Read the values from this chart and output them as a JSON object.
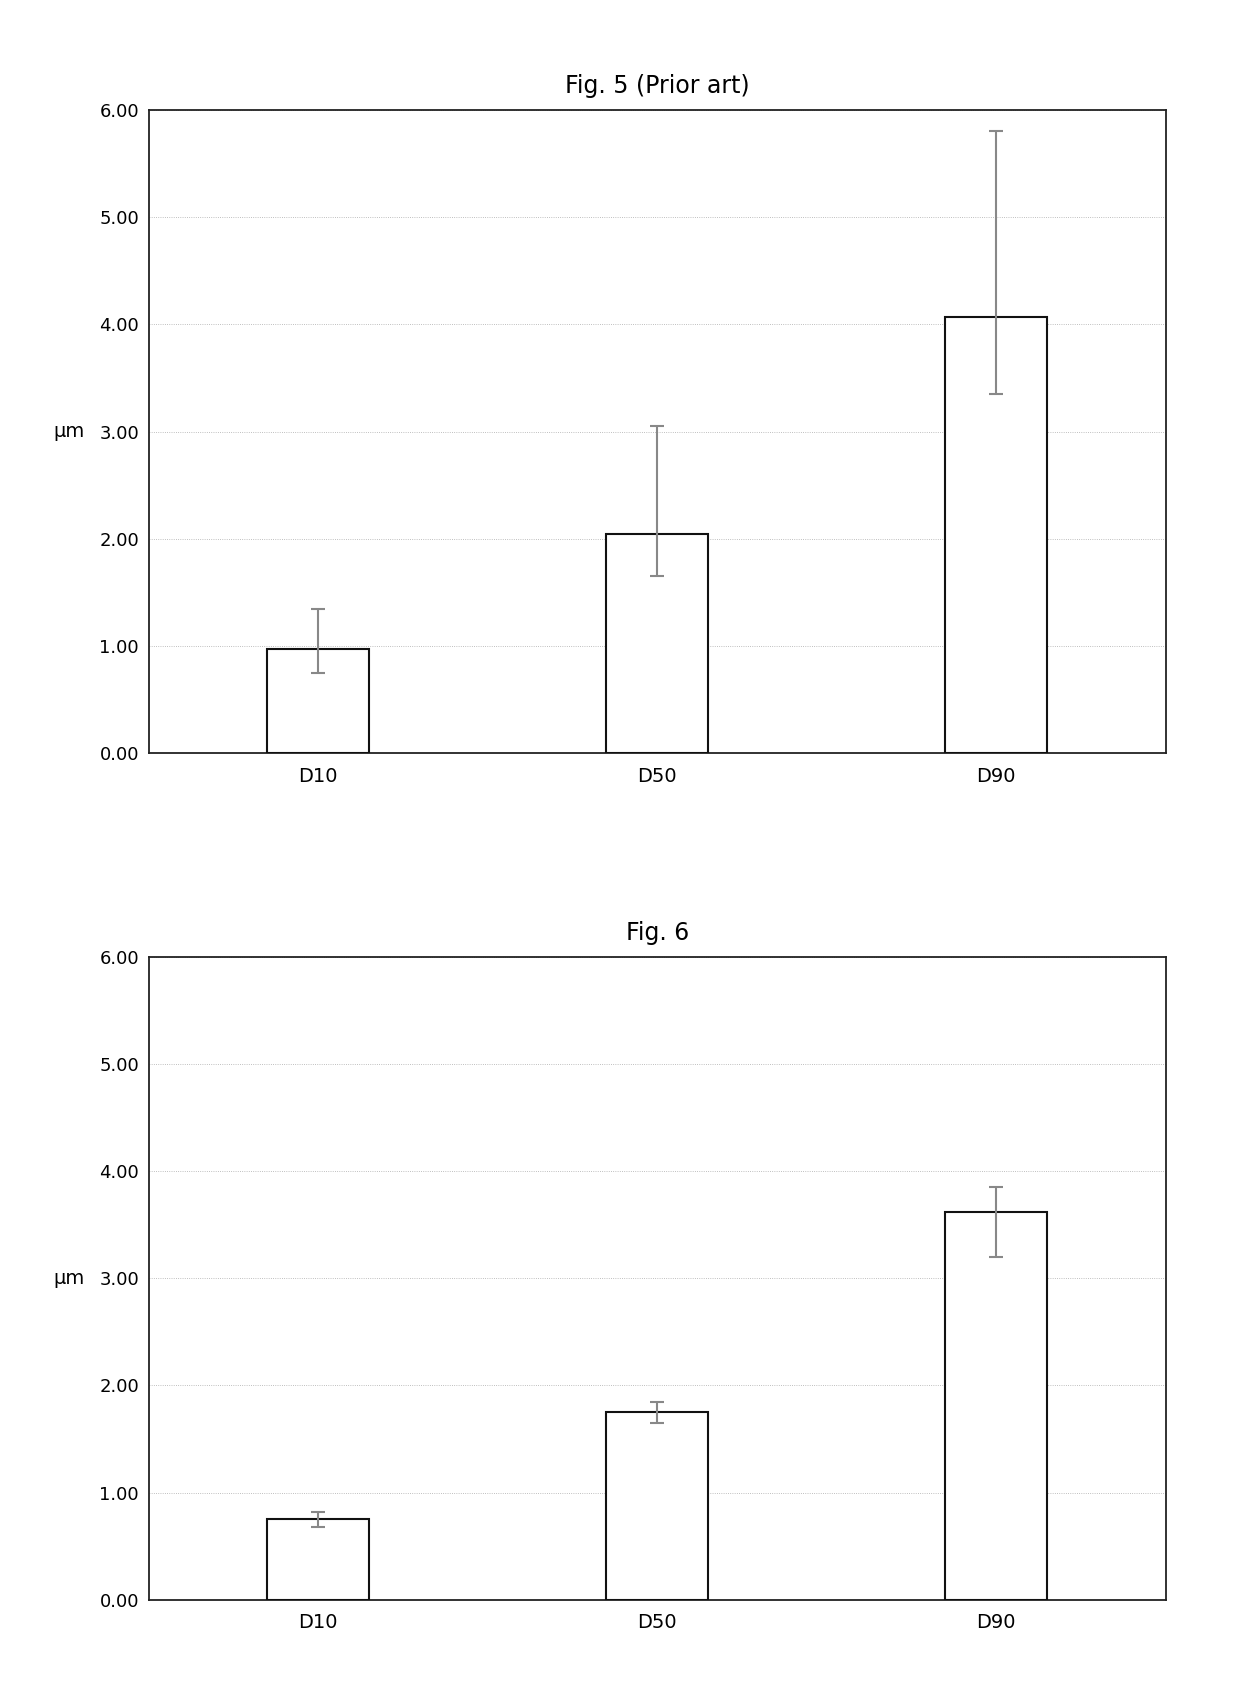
{
  "fig5": {
    "title": "Fig. 5 (Prior art)",
    "categories": [
      "D10",
      "D50",
      "D90"
    ],
    "values": [
      0.97,
      2.05,
      4.07
    ],
    "yerr_lower": [
      0.22,
      0.4,
      0.72
    ],
    "yerr_upper": [
      0.38,
      1.0,
      1.73
    ],
    "ylabel": "μm",
    "ylim": [
      0.0,
      6.0
    ],
    "yticks": [
      0.0,
      1.0,
      2.0,
      3.0,
      4.0,
      5.0,
      6.0
    ],
    "yticklabels": [
      "0.00",
      "1.00",
      "2.00",
      "3.00",
      "4.00",
      "5.00",
      "6.00"
    ]
  },
  "fig6": {
    "title": "Fig. 6",
    "categories": [
      "D10",
      "D50",
      "D90"
    ],
    "values": [
      0.75,
      1.75,
      3.62
    ],
    "yerr_lower": [
      0.07,
      0.1,
      0.42
    ],
    "yerr_upper": [
      0.07,
      0.1,
      0.23
    ],
    "ylabel": "μm",
    "ylim": [
      0.0,
      6.0
    ],
    "yticks": [
      0.0,
      1.0,
      2.0,
      3.0,
      4.0,
      5.0,
      6.0
    ],
    "yticklabels": [
      "0.00",
      "1.00",
      "2.00",
      "3.00",
      "4.00",
      "5.00",
      "6.00"
    ]
  },
  "bar_color": "#ffffff",
  "bar_edgecolor": "#111111",
  "bar_width": 0.3,
  "error_color": "#888888",
  "background_color": "#ffffff",
  "title_fontsize": 17,
  "label_fontsize": 14,
  "tick_fontsize": 13,
  "grid_color": "#aaaaaa",
  "grid_linestyle": ":",
  "grid_linewidth": 0.6
}
